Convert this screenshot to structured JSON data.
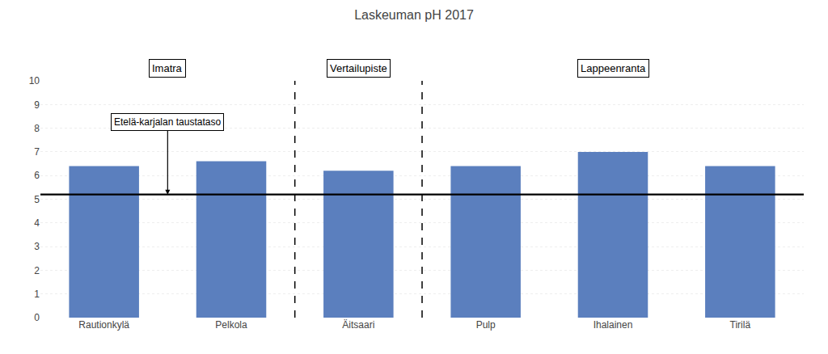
{
  "chart_data": {
    "type": "bar",
    "title": "Laskeuman pH 2017",
    "categories": [
      "Rautionkylä",
      "Pelkola",
      "Äitsaari",
      "Pulp",
      "Ihalainen",
      "Tirilä"
    ],
    "values": [
      6.4,
      6.6,
      6.2,
      6.4,
      7.0,
      6.4
    ],
    "color": "#5b7fbe",
    "ylim": [
      0,
      10
    ],
    "yticks": [
      0,
      1,
      2,
      3,
      4,
      5,
      6,
      7,
      8,
      9,
      10
    ],
    "grid": true,
    "reference_line": {
      "value": 5.2,
      "label": "Etelä-karjalan taustataso"
    },
    "groups": [
      {
        "label": "Imatra",
        "categories": [
          "Rautionkylä",
          "Pelkola"
        ]
      },
      {
        "label": "Vertailupiste",
        "categories": [
          "Äitsaari"
        ]
      },
      {
        "label": "Lappeenranta",
        "categories": [
          "Pulp",
          "Ihalainen",
          "Tirilä"
        ]
      }
    ]
  }
}
